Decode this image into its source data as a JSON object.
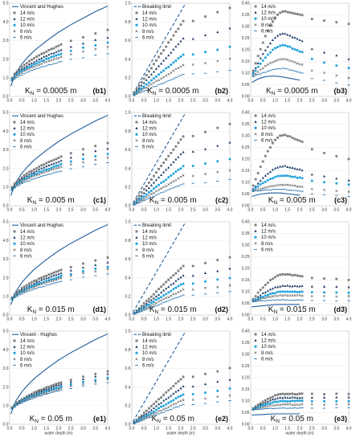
{
  "figure": {
    "xlabel": "water depth (m)",
    "x_ticks": [
      "0.0",
      "0.5",
      "1.0",
      "1.5",
      "2.0",
      "2.5",
      "3.0",
      "3.5",
      "4.0"
    ],
    "y_ticks_col1": [
      "0.0",
      "1.0",
      "2.0",
      "3.0",
      "4.0",
      "5.0"
    ],
    "y_ticks_col2": [
      "0.0",
      "0.2",
      "0.4",
      "0.6",
      "0.8",
      "1.0"
    ],
    "y_ticks_col3": [
      "0.00",
      "0.05",
      "0.10",
      "0.15",
      "0.20",
      "0.25",
      "0.30",
      "0.35",
      "0.40"
    ],
    "series_styles": [
      {
        "name": "14 m/s",
        "color": "#7f7f7f",
        "marker": "square"
      },
      {
        "name": "12 m/s",
        "color": "#1f3f66",
        "marker": "triangle"
      },
      {
        "name": "10 m/s",
        "color": "#1fa3dc",
        "marker": "circle"
      },
      {
        "name": "8 m/s",
        "color": "#555555",
        "marker": "x"
      },
      {
        "name": "6 m/s",
        "color": "#1f6fb0",
        "marker": "dash"
      }
    ],
    "ref_color": "#1f5f9f"
  },
  "chart_data": [
    {
      "id": "b1",
      "row": 0,
      "col": 0,
      "type": "scatter",
      "ylim": [
        0,
        5
      ],
      "xlim": [
        0,
        4
      ],
      "ref_line": {
        "label": "Vincent and Hughes",
        "style": "solid",
        "x": [
          0.05,
          0.25,
          0.5,
          0.75,
          1.0,
          1.5,
          2.0,
          2.5,
          3.0,
          3.5,
          4.0
        ],
        "y": [
          0.55,
          1.25,
          1.75,
          2.12,
          2.45,
          2.98,
          3.45,
          3.85,
          4.2,
          4.55,
          4.85
        ]
      },
      "series_max": [
        3.7,
        3.3,
        3.0,
        2.75,
        2.4
      ],
      "ks_label": "K_N = 0.0005 m",
      "panel": "(b1)"
    },
    {
      "id": "b2",
      "row": 0,
      "col": 1,
      "type": "scatter",
      "ylim": [
        0,
        1
      ],
      "xlim": [
        0,
        4
      ],
      "ref_line": {
        "label": "Breaking limit",
        "style": "dashed",
        "x": [
          0.05,
          2.2
        ],
        "y": [
          0.03,
          1.0
        ]
      },
      "series_max": [
        0.95,
        0.73,
        0.53,
        0.4,
        0.28
      ],
      "ks_label": "K_N = 0.0005 m",
      "panel": "(b2)"
    },
    {
      "id": "b3",
      "row": 0,
      "col": 2,
      "type": "scatter",
      "ylim": [
        0,
        0.4
      ],
      "xlim": [
        0,
        4
      ],
      "ref_line": {
        "label": "",
        "style": "solid",
        "x": [
          0.05,
          0.3,
          0.6,
          0.9,
          1.2,
          1.6,
          2.0
        ],
        "y": [
          0.06,
          0.075,
          0.085,
          0.088,
          0.085,
          0.078,
          0.07
        ]
      },
      "series_peak": [
        0.365,
        0.27,
        0.22,
        0.16,
        0.12
      ],
      "series_end": [
        0.31,
        0.16,
        0.12,
        0.08,
        0.05
      ],
      "ks_label": "K_N = 0.0005 m",
      "panel": "(b3)"
    },
    {
      "id": "c1",
      "row": 1,
      "col": 0,
      "type": "scatter",
      "ylim": [
        0,
        5
      ],
      "xlim": [
        0,
        4
      ],
      "ref_line": {
        "label": "Vincent and Hughes",
        "style": "solid",
        "x": [
          0.05,
          0.25,
          0.5,
          0.75,
          1.0,
          1.5,
          2.0,
          2.5,
          3.0,
          3.5,
          4.0
        ],
        "y": [
          0.55,
          1.25,
          1.75,
          2.12,
          2.45,
          2.98,
          3.45,
          3.85,
          4.2,
          4.55,
          4.85
        ]
      },
      "series_max": [
        3.5,
        3.2,
        2.9,
        2.7,
        2.4
      ],
      "ks_label": "K_N = 0.005 m",
      "panel": "(c1)"
    },
    {
      "id": "c2",
      "row": 1,
      "col": 1,
      "type": "scatter",
      "ylim": [
        0,
        1
      ],
      "xlim": [
        0,
        4
      ],
      "ref_line": {
        "label": "Breaking limit",
        "style": "dashed",
        "x": [
          0.05,
          2.2
        ],
        "y": [
          0.03,
          1.0
        ]
      },
      "series_max": [
        0.88,
        0.68,
        0.5,
        0.38,
        0.28
      ],
      "ks_label": "K_N = 0.005 m",
      "panel": "(c2)"
    },
    {
      "id": "c3",
      "row": 1,
      "col": 2,
      "type": "scatter",
      "ylim": [
        0,
        0.4
      ],
      "xlim": [
        0,
        4
      ],
      "ref_line": {
        "label": "",
        "style": "solid",
        "x": [
          0.05,
          0.4,
          0.8,
          1.2,
          1.6,
          2.0
        ],
        "y": [
          0.04,
          0.05,
          0.055,
          0.055,
          0.05,
          0.045
        ]
      },
      "series_peak": [
        0.305,
        0.17,
        0.13,
        0.09,
        0.07
      ],
      "series_end": [
        0.2,
        0.11,
        0.09,
        0.06,
        0.04
      ],
      "ks_label": "K_N = 0.005 m",
      "panel": "(c3)"
    },
    {
      "id": "d1",
      "row": 2,
      "col": 0,
      "type": "scatter",
      "ylim": [
        0,
        5
      ],
      "xlim": [
        0,
        4
      ],
      "ref_line": {
        "label": "Vincent and Hughes",
        "style": "solid",
        "x": [
          0.05,
          0.25,
          0.5,
          0.75,
          1.0,
          1.5,
          2.0,
          2.5,
          3.0,
          3.5,
          4.0
        ],
        "y": [
          0.55,
          1.25,
          1.75,
          2.12,
          2.45,
          2.98,
          3.45,
          3.85,
          4.2,
          4.55,
          4.85
        ]
      },
      "series_max": [
        3.2,
        2.95,
        2.7,
        2.55,
        2.3
      ],
      "ks_label": "K_N = 0.015 m",
      "panel": "(d1)"
    },
    {
      "id": "d2",
      "row": 2,
      "col": 1,
      "type": "scatter",
      "ylim": [
        0,
        1
      ],
      "xlim": [
        0,
        4
      ],
      "ref_line": {
        "label": "Breaking limit",
        "style": "dashed",
        "x": [
          0.05,
          2.2
        ],
        "y": [
          0.03,
          1.0
        ]
      },
      "series_max": [
        0.62,
        0.5,
        0.4,
        0.32,
        0.25
      ],
      "ks_label": "K_N = 0.015 m",
      "panel": "(d2)"
    },
    {
      "id": "d3",
      "row": 2,
      "col": 2,
      "type": "scatter",
      "ylim": [
        0,
        0.4
      ],
      "xlim": [
        0,
        4
      ],
      "ref_line": {
        "label": "",
        "style": "solid",
        "x": [
          0.05,
          0.5,
          1.0,
          1.5,
          2.0
        ],
        "y": [
          0.035,
          0.04,
          0.045,
          0.045,
          0.045
        ]
      },
      "series_peak": [
        0.175,
        0.125,
        0.1,
        0.085,
        0.065
      ],
      "series_end": [
        0.15,
        0.12,
        0.095,
        0.08,
        0.06
      ],
      "ks_label": "K_N = 0.015 m",
      "panel": "(d3)"
    },
    {
      "id": "e1",
      "row": 3,
      "col": 0,
      "type": "scatter",
      "ylim": [
        0,
        5
      ],
      "xlim": [
        0,
        4
      ],
      "ref_line": {
        "label": "Vincent - Hughes",
        "style": "solid",
        "x": [
          0.05,
          0.25,
          0.5,
          0.75,
          1.0,
          1.5,
          2.0,
          2.5,
          3.0,
          3.5,
          4.0
        ],
        "y": [
          0.55,
          1.25,
          1.75,
          2.12,
          2.45,
          2.98,
          3.45,
          3.85,
          4.2,
          4.55,
          4.85
        ]
      },
      "series_max": [
        2.95,
        2.8,
        2.6,
        2.5,
        2.35
      ],
      "ks_label": "K_N = 0.05 m",
      "panel": "(e1)"
    },
    {
      "id": "e2",
      "row": 3,
      "col": 1,
      "type": "scatter",
      "ylim": [
        0,
        1
      ],
      "xlim": [
        0,
        4
      ],
      "ref_line": {
        "label": "Breaking limit",
        "style": "dashed",
        "x": [
          0.05,
          2.2
        ],
        "y": [
          0.03,
          1.0
        ]
      },
      "series_max": [
        0.6,
        0.48,
        0.38,
        0.31,
        0.25
      ],
      "ks_label": "K_N = 0.05 m",
      "panel": "(e2)"
    },
    {
      "id": "e3",
      "row": 3,
      "col": 2,
      "type": "scatter",
      "ylim": [
        0,
        0.4
      ],
      "xlim": [
        0,
        4
      ],
      "ref_line": {
        "label": "",
        "style": "solid",
        "x": [
          0.05,
          0.5,
          1.0,
          1.5,
          2.0
        ],
        "y": [
          0.04,
          0.042,
          0.045,
          0.045,
          0.045
        ]
      },
      "series_peak": [
        0.13,
        0.115,
        0.1,
        0.085,
        0.07
      ],
      "series_end": [
        0.13,
        0.115,
        0.1,
        0.085,
        0.07
      ],
      "ks_label": "K_N = 0.05 m",
      "panel": "(e3)"
    }
  ]
}
